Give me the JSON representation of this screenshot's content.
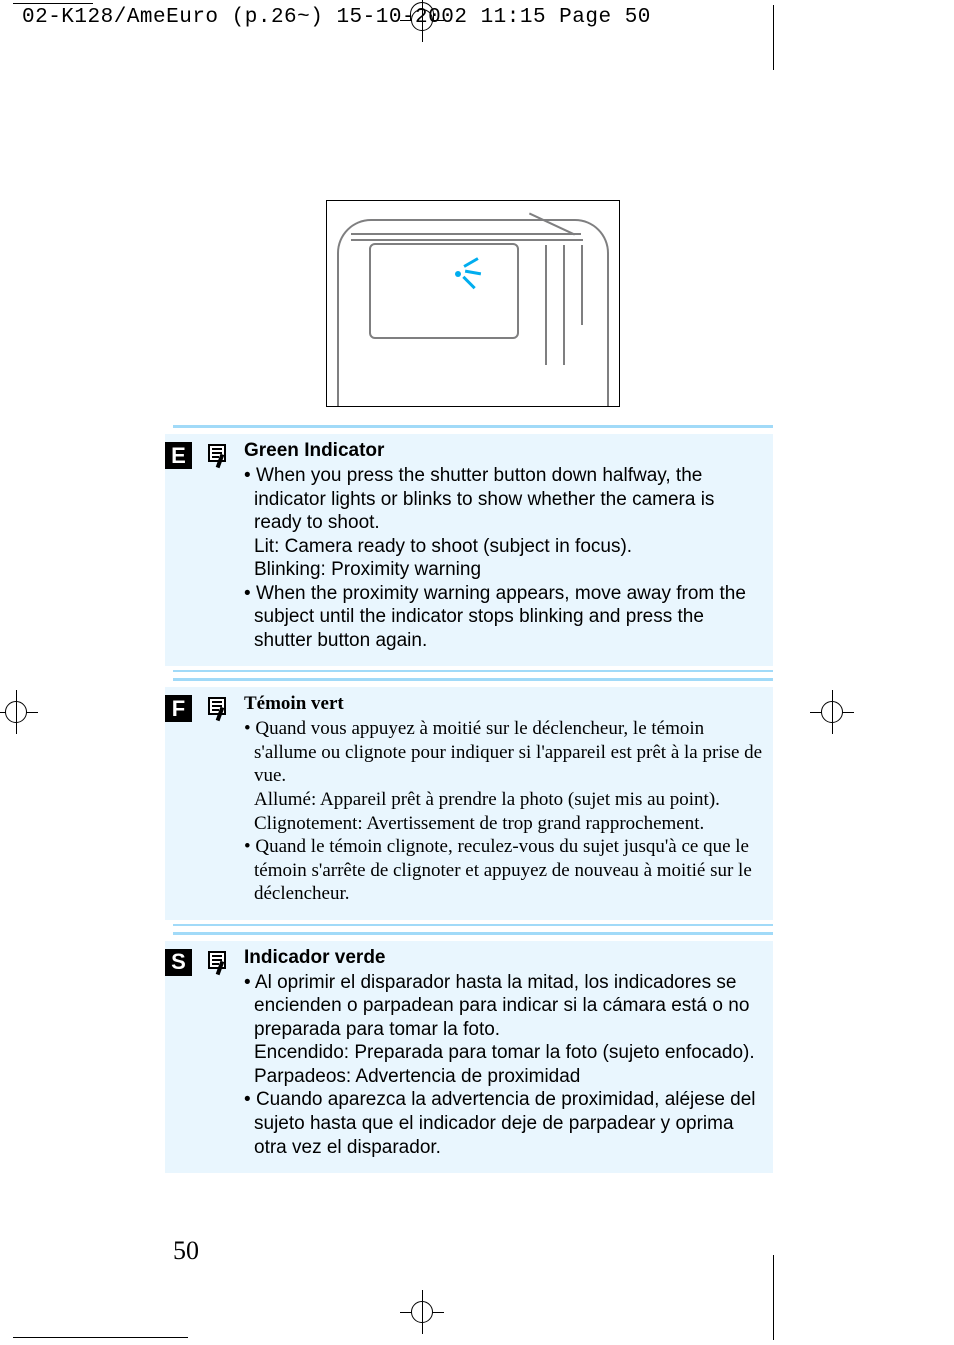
{
  "slug": "02-K128/AmeEuro (p.26~)  15-10-2002  11:15  Page 50",
  "page_number": "50",
  "colors": {
    "divider": "#a1daf8",
    "section_bg": "#e9f6fe",
    "spark": "#00adef",
    "illustration_stroke": "#7f7f80",
    "text": "#000000"
  },
  "sections": [
    {
      "lang_tag": "E",
      "title": "Green Indicator",
      "font": "sans",
      "bullets": [
        {
          "main": "When you press the shutter button down halfway, the indicator lights or blinks to show whether the camera is ready to shoot.",
          "sub": [
            "Lit: Camera ready to shoot (subject in focus).",
            "Blinking: Proximity warning"
          ]
        },
        {
          "main": "When the proximity warning appears, move away from the subject until the indicator stops blinking and press the shutter button again.",
          "sub": []
        }
      ]
    },
    {
      "lang_tag": "F",
      "title": "Témoin vert",
      "font": "serif",
      "bullets": [
        {
          "main": "Quand vous appuyez à moitié sur le déclencheur, le témoin s'allume ou clignote pour indiquer si l'appareil est prêt à la prise de vue.",
          "sub": [
            "Allumé: Appareil prêt à prendre la photo (sujet mis au point).",
            "Clignotement: Avertissement de trop grand rapprochement."
          ]
        },
        {
          "main": "Quand le témoin clignote, reculez-vous du sujet jusqu'à ce que le témoin s'arrête de clignoter et appuyez de nouveau à moitié sur le déclencheur.",
          "sub": []
        }
      ]
    },
    {
      "lang_tag": "S",
      "title": "Indicador verde",
      "font": "sans",
      "bullets": [
        {
          "main": "Al oprimir el disparador hasta la mitad, los indicadores se encienden o parpadean para indicar si la cámara está o no preparada para tomar la foto.",
          "sub": [
            "Encendido: Preparada para tomar la foto (sujeto enfocado).",
            "Parpadeos: Advertencia de proximidad"
          ]
        },
        {
          "main": "Cuando aparezca la advertencia de proximidad, aléjese del sujeto hasta que el indicador deje de parpadear y oprima otra vez el disparador.",
          "sub": []
        }
      ]
    }
  ]
}
